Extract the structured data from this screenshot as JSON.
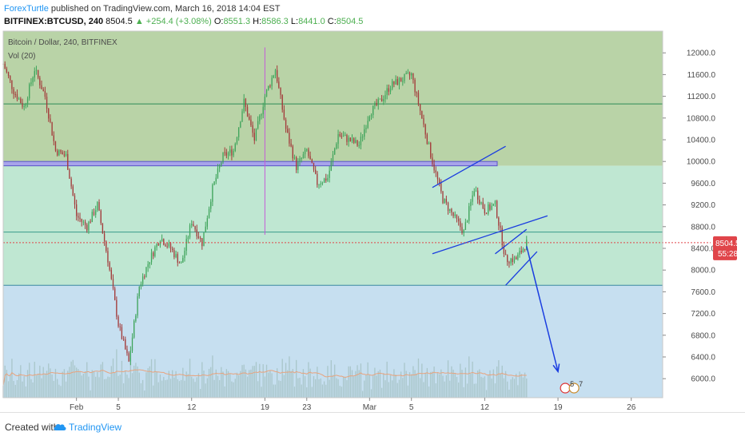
{
  "header": {
    "author": "ForexTurtle",
    "published": " published on TradingView.com, March 16, 2018 14:04 EST",
    "symbol": "BITFINEX:BTCUSD, 240",
    "last": "8504.5",
    "change": "▲ +254.4 (+3.08%)",
    "open_label": "O:",
    "open": "8551.3",
    "high_label": "H:",
    "high": "8586.3",
    "low_label": "L:",
    "low": "8441.0",
    "close_label": "C:",
    "close": "8504.5"
  },
  "legend": {
    "title": "Bitcoin / Dollar, 240, BITFINEX",
    "indicator": "Vol (20)"
  },
  "footer": {
    "created_with": "Created with",
    "brand": "TradingView"
  },
  "colors": {
    "up": "#3fa45b",
    "down": "#a33b3b",
    "trendline": "#1a3de0",
    "zone_top": "#b9d3a7",
    "zone_mid": "#bfe7d2",
    "zone_low": "#c6dff0",
    "level": "#2e8b57",
    "resistance_band": "#a7a4ea",
    "marker": "#c45bd8",
    "price_badge": "#e0454a",
    "volume": "#a9c6ca",
    "volume_ma": "#e8a37e"
  },
  "chart_data": {
    "type": "line",
    "title": "Bitcoin / Dollar, 240, BITFINEX",
    "yaxis_ticks": [
      12000,
      11600,
      11200,
      10800,
      10400,
      10000,
      9600,
      9200,
      8800,
      8400,
      8000,
      7600,
      7200,
      6800,
      6400,
      6000
    ],
    "yaxis_tick_labels": [
      "12000.0",
      "11600.0",
      "11200.0",
      "10800.0",
      "10400.0",
      "10000.0",
      "9600.0",
      "9200.0",
      "8800.0",
      "8400.0",
      "8000.0",
      "7600.0",
      "7200.0",
      "6800.0",
      "6400.0",
      "6000.0"
    ],
    "ylim": [
      5650,
      12400
    ],
    "xaxis_labels": [
      "Feb",
      "5",
      "12",
      "19",
      "23",
      "Mar",
      "5",
      "12",
      "19",
      "26"
    ],
    "xaxis_dates": [
      "2018-02-01",
      "2018-02-05",
      "2018-02-12",
      "2018-02-19",
      "2018-02-23",
      "2018-03-01",
      "2018-03-05",
      "2018-03-12",
      "2018-03-19",
      "2018-03-26"
    ],
    "xlim": [
      "2018-01-25",
      "2018-03-29"
    ],
    "price_path": {
      "dates": [
        "2018-01-25",
        "2018-01-26",
        "2018-01-27",
        "2018-01-28",
        "2018-01-29",
        "2018-01-30",
        "2018-01-31",
        "2018-02-01",
        "2018-02-02",
        "2018-02-03",
        "2018-02-04",
        "2018-02-05",
        "2018-02-06",
        "2018-02-07",
        "2018-02-08",
        "2018-02-09",
        "2018-02-10",
        "2018-02-11",
        "2018-02-12",
        "2018-02-13",
        "2018-02-14",
        "2018-02-15",
        "2018-02-16",
        "2018-02-17",
        "2018-02-18",
        "2018-02-19",
        "2018-02-20",
        "2018-02-21",
        "2018-02-22",
        "2018-02-23",
        "2018-02-24",
        "2018-02-25",
        "2018-02-26",
        "2018-02-27",
        "2018-02-28",
        "2018-03-01",
        "2018-03-02",
        "2018-03-03",
        "2018-03-04",
        "2018-03-05",
        "2018-03-06",
        "2018-03-07",
        "2018-03-08",
        "2018-03-09",
        "2018-03-10",
        "2018-03-11",
        "2018-03-12",
        "2018-03-13",
        "2018-03-14",
        "2018-03-15",
        "2018-03-16"
      ],
      "close": [
        11800,
        11300,
        11000,
        11700,
        11200,
        10200,
        10100,
        9000,
        8800,
        9200,
        8200,
        7000,
        6300,
        7700,
        8200,
        8600,
        8400,
        8100,
        8900,
        8500,
        9500,
        10100,
        10200,
        11100,
        10400,
        11200,
        11700,
        10600,
        9900,
        10200,
        9600,
        9700,
        10500,
        10400,
        10300,
        10900,
        11100,
        11400,
        11500,
        11600,
        10800,
        10000,
        9300,
        9000,
        8700,
        9500,
        9100,
        9200,
        8200,
        8200,
        8500
      ]
    },
    "horizontal_levels": [
      {
        "name": "resistance-zone-top",
        "price": 11060
      },
      {
        "name": "resistance-band",
        "price_low": 9920,
        "price_high": 10000
      },
      {
        "name": "mid-level",
        "price": 8700
      },
      {
        "name": "support-level",
        "price": 7720
      }
    ],
    "last_price": 8504.5,
    "last_price_label": "8504.5",
    "countdown_label": "55:28",
    "forecast_arrow": {
      "from_date": "2018-03-16",
      "from_price": 8440,
      "to_date": "2018-03-19",
      "to_price": 6130
    },
    "badges": [
      "5",
      "7"
    ]
  }
}
